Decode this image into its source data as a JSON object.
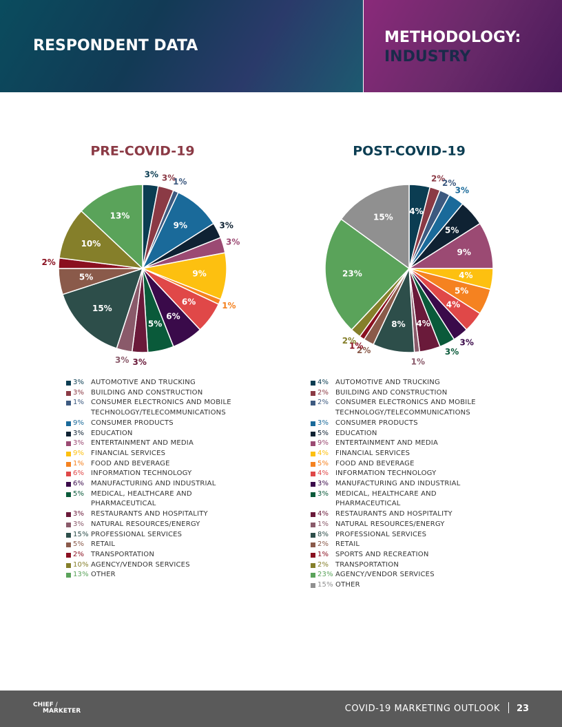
{
  "header": {
    "left_title": "RESPONDENT DATA",
    "right_title": "METHODOLOGY:",
    "right_subtitle": "INDUSTRY"
  },
  "chart_data": [
    {
      "type": "pie",
      "title": "PRE-COVID-19",
      "title_color": "#8b3a45",
      "categories": [
        "AUTOMOTIVE AND TRUCKING",
        "BUILDING AND CONSTRUCTION",
        "CONSUMER ELECTRONICS AND MOBILE TECHNOLOGY/TELECOMMUNICATIONS",
        "CONSUMER PRODUCTS",
        "EDUCATION",
        "ENTERTAINMENT AND MEDIA",
        "FINANCIAL SERVICES",
        "FOOD AND BEVERAGE",
        "INFORMATION TECHNOLOGY",
        "MANUFACTURING AND INDUSTRIAL",
        "MEDICAL, HEALTHCARE AND PHARMACEUTICAL",
        "RESTAURANTS AND HOSPITALITY",
        "NATURAL RESOURCES/ENERGY",
        "PROFESSIONAL SERVICES",
        "RETAIL",
        "TRANSPORTATION",
        "AGENCY/VENDOR SERVICES",
        "OTHER"
      ],
      "values": [
        3,
        3,
        1,
        9,
        3,
        3,
        9,
        1,
        6,
        6,
        5,
        3,
        3,
        15,
        5,
        2,
        10,
        13
      ],
      "value_labels": [
        "3%",
        "3%",
        "1%",
        "9%",
        "3%",
        "3%",
        "9%",
        "1%",
        "6%",
        "6%",
        "5%",
        "3%",
        "3%",
        "15%",
        "5%",
        "2%",
        "10%",
        "13%"
      ],
      "colors": [
        "#0b3d52",
        "#8b3a45",
        "#3d5a80",
        "#1a6a9a",
        "#0f2233",
        "#9b4a73",
        "#fdc010",
        "#f58220",
        "#e04848",
        "#3a0a4a",
        "#0a5a3a",
        "#6a1a3a",
        "#8a5a6a",
        "#2d4e4a",
        "#8a5a4a",
        "#8a1020",
        "#857f2a",
        "#5aa35a"
      ]
    },
    {
      "type": "pie",
      "title": "POST-COVID-19",
      "title_color": "#0b3d52",
      "categories": [
        "AUTOMOTIVE AND TRUCKING",
        "BUILDING AND CONSTRUCTION",
        "CONSUMER ELECTRONICS AND MOBILE TECHNOLOGY/TELECOMMUNICATIONS",
        "CONSUMER PRODUCTS",
        "EDUCATION",
        "ENTERTAINMENT AND MEDIA",
        "FINANCIAL SERVICES",
        "FOOD AND BEVERAGE",
        "INFORMATION TECHNOLOGY",
        "MANUFACTURING AND INDUSTRIAL",
        "MEDICAL, HEALTHCARE AND PHARMACEUTICAL",
        "RESTAURANTS AND HOSPITALITY",
        "NATURAL RESOURCES/ENERGY",
        "PROFESSIONAL SERVICES",
        "RETAIL",
        "SPORTS AND RECREATION",
        "TRANSPORTATION",
        "AGENCY/VENDOR SERVICES",
        "OTHER"
      ],
      "values": [
        4,
        2,
        2,
        3,
        5,
        9,
        4,
        5,
        4,
        3,
        3,
        4,
        1,
        8,
        2,
        1,
        2,
        23,
        15
      ],
      "value_labels": [
        "4%",
        "2%",
        "2%",
        "3%",
        "5%",
        "9%",
        "4%",
        "5%",
        "4%",
        "3%",
        "3%",
        "4%",
        "1%",
        "8%",
        "2%",
        "1%",
        "2%",
        "23%",
        "15%"
      ],
      "colors": [
        "#0b3d52",
        "#8b3a45",
        "#3d5a80",
        "#1a6a9a",
        "#0f2233",
        "#9b4a73",
        "#fdc010",
        "#f58220",
        "#e04848",
        "#3a0a4a",
        "#0a5a3a",
        "#6a1a3a",
        "#8a5a6a",
        "#2d4e4a",
        "#8a5a4a",
        "#8a1020",
        "#857f2a",
        "#5aa35a",
        "#909090"
      ]
    }
  ],
  "footer": {
    "brand_top": "CHIEF",
    "brand_bottom": "MARKETER",
    "publication": "COVID-19 MARKETING OUTLOOK",
    "page_number": "23"
  }
}
